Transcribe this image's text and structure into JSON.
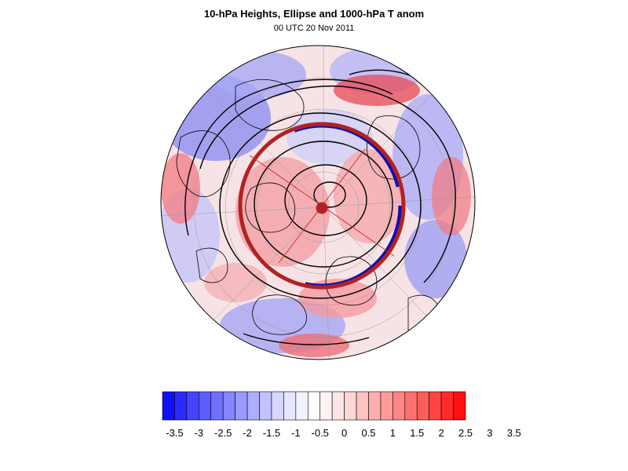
{
  "title": "10-hPa Heights, Ellipse and 1000-hPa T anom",
  "subtitle": "00 UTC 20 Nov 2011",
  "colorbar": {
    "labels": [
      "-3.5",
      "-3",
      "-2.5",
      "-2",
      "-1.5",
      "-1",
      "-0.5",
      "0",
      "0.5",
      "1",
      "1.5",
      "2",
      "2.5",
      "3",
      "3.5"
    ],
    "colors": [
      "#1010ff",
      "#2a2aff",
      "#4444ff",
      "#5c5cff",
      "#7070ff",
      "#8686ff",
      "#9a9aff",
      "#aeaeff",
      "#c2c2ff",
      "#d6d6ff",
      "#e6e6ff",
      "#f2f2ff",
      "#ffffff",
      "#fff2f2",
      "#ffe6e6",
      "#ffd6d6",
      "#ffc2c2",
      "#ffaeae",
      "#ff9a9a",
      "#ff8686",
      "#ff7070",
      "#ff5c5c",
      "#ff4444",
      "#ff2a2a",
      "#ff1010"
    ]
  },
  "colors": {
    "warm_anomaly": "#ff6a6a",
    "cold_anomaly": "#6a6aff",
    "ellipse": "#b22222",
    "height_contours": "#000000"
  }
}
